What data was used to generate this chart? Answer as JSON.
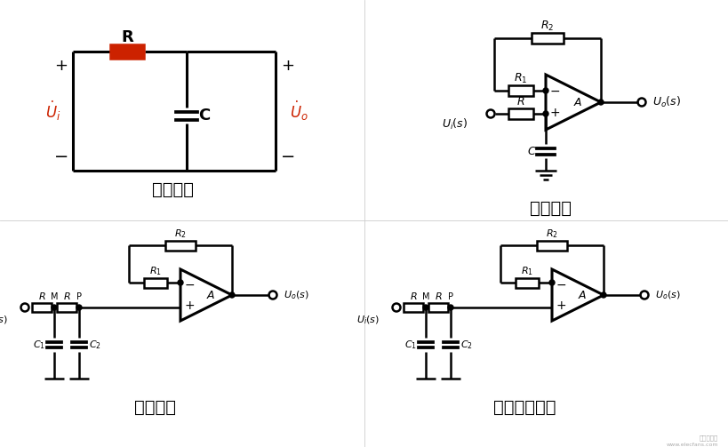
{
  "bg_color": "#ffffff",
  "line_color": "#000000",
  "red_color": "#cc2200",
  "red_text_color": "#cc2200",
  "fig_w": 8.2,
  "fig_h": 5.03,
  "dpi": 100,
  "panel_labels": [
    "无源低通",
    "一阶低通",
    "二阶低通",
    "实用二阶低通"
  ],
  "panel_label_fontsize": 14
}
